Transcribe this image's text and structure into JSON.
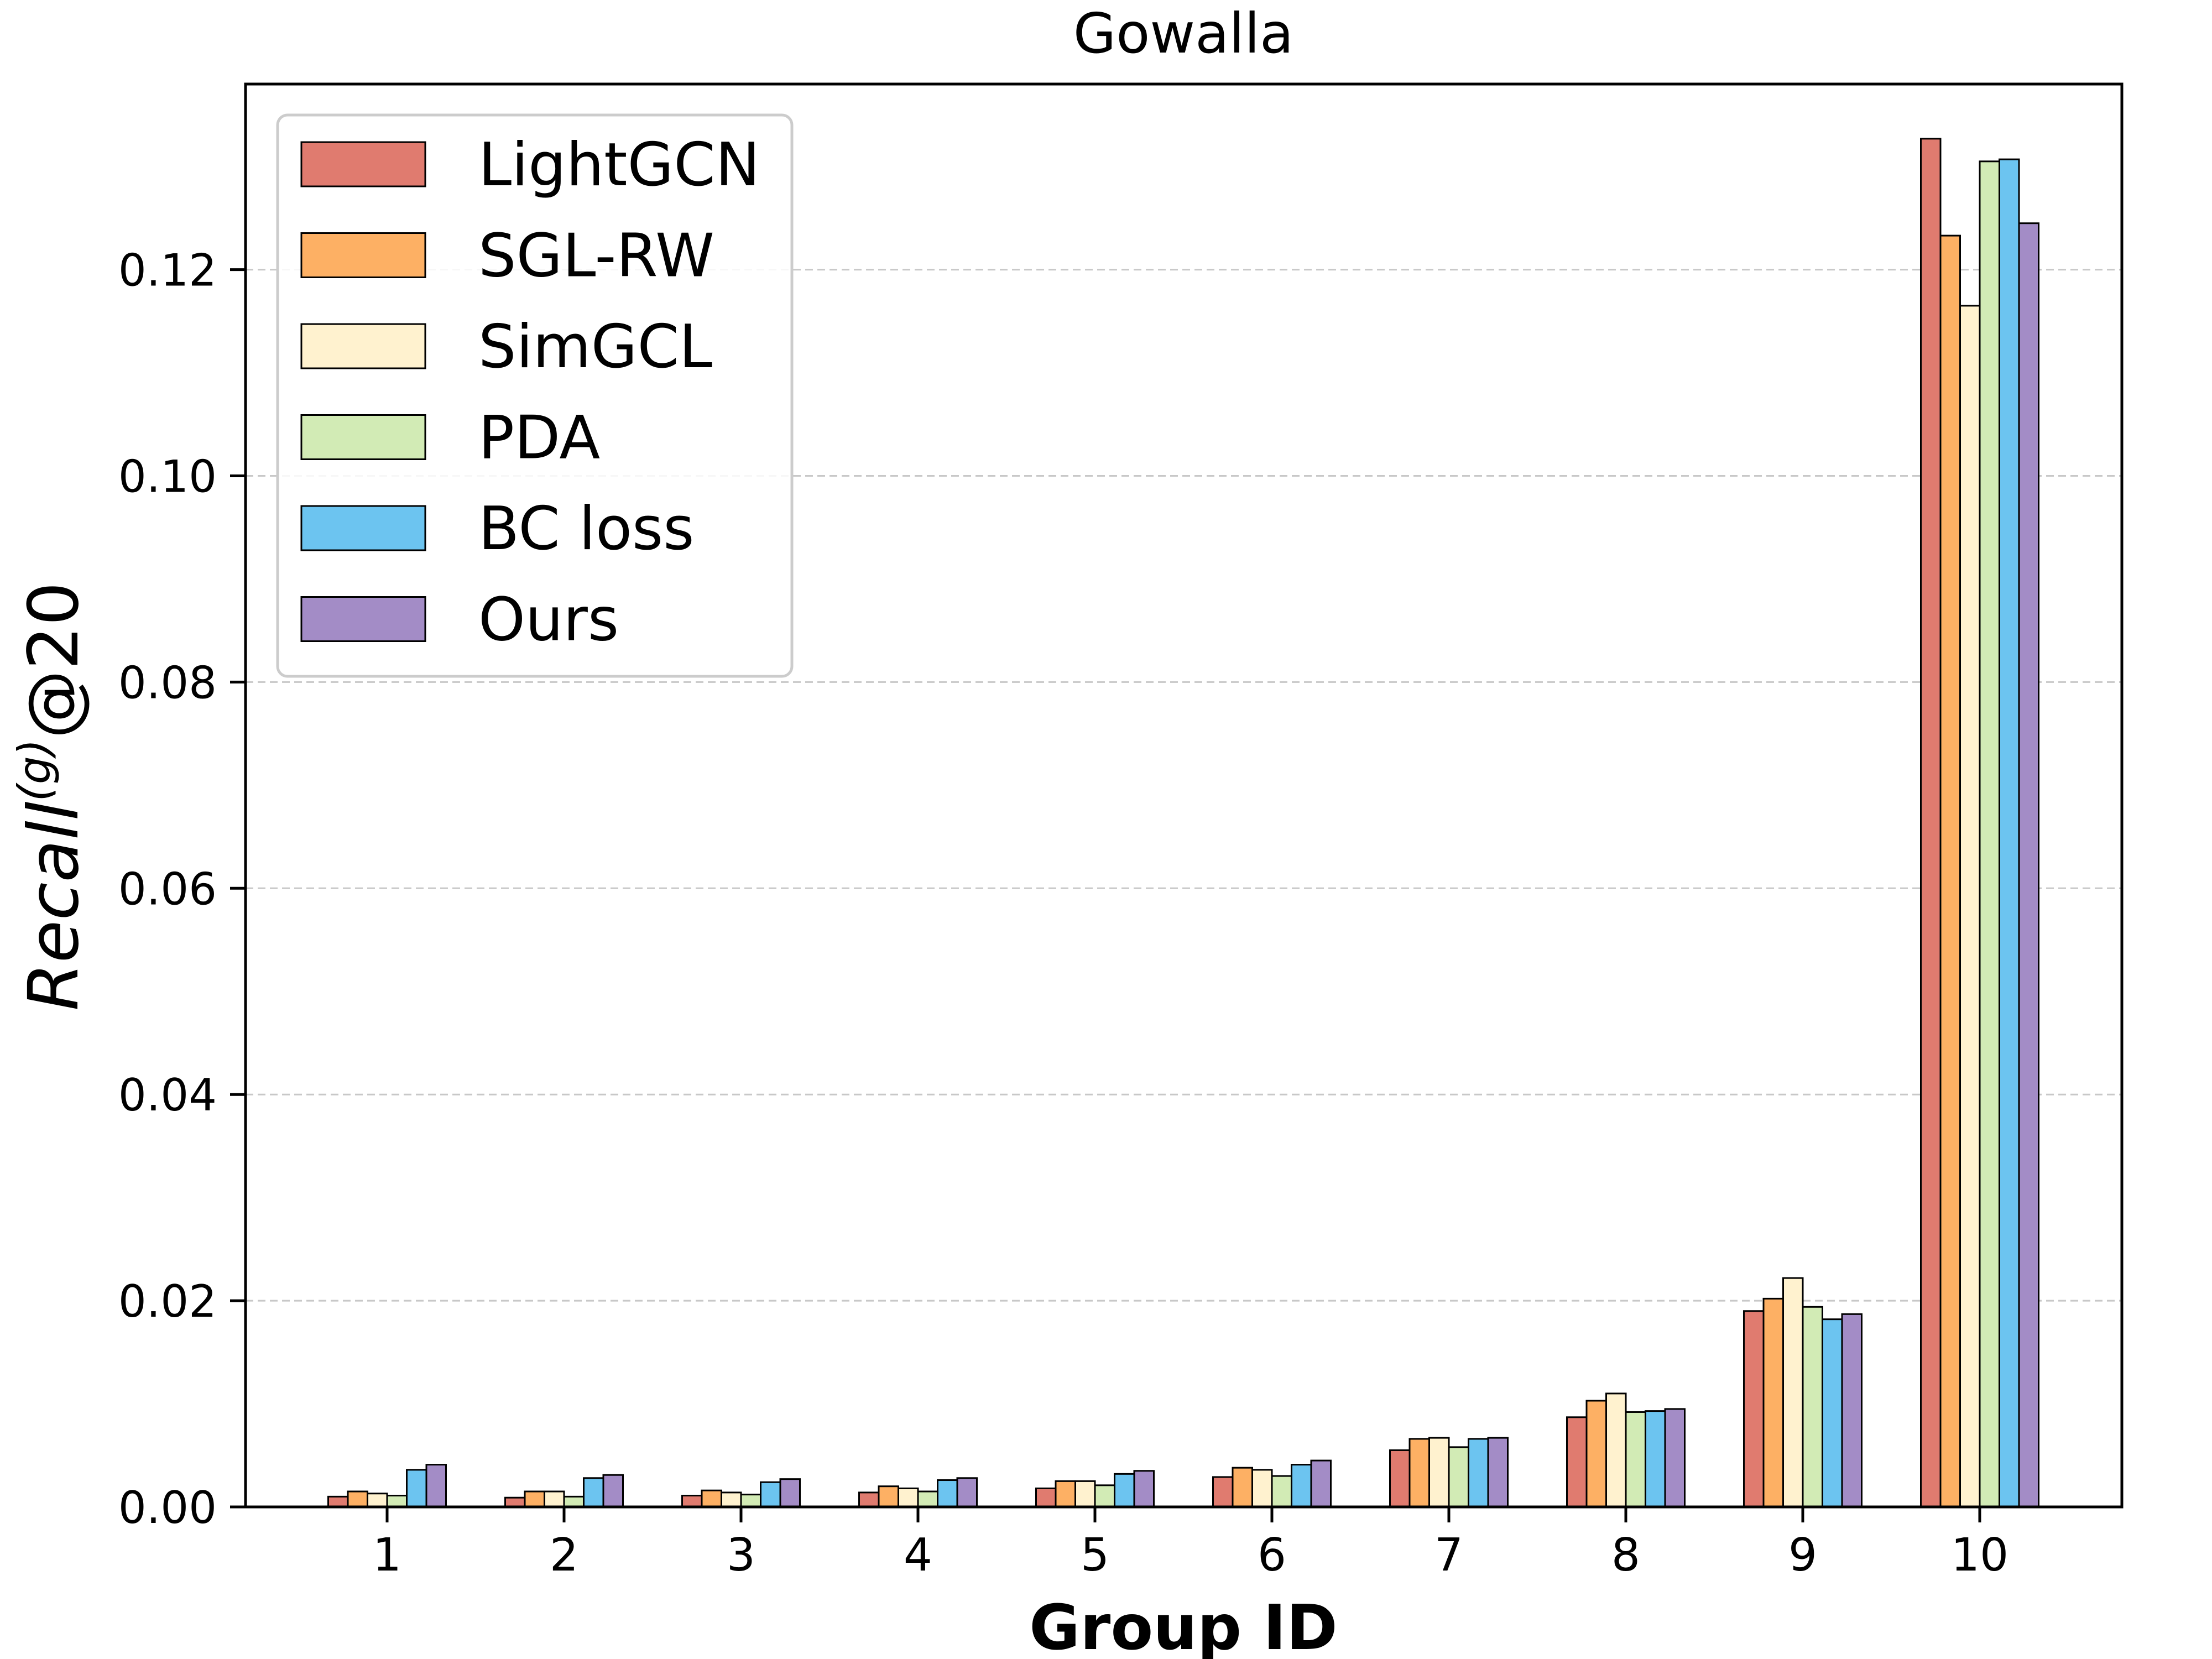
{
  "chart_data": {
    "type": "bar",
    "title": "Gowalla",
    "xlabel": "Group ID",
    "ylabel_main": "Recall",
    "ylabel_sup": "(g)",
    "ylabel_suffix": "@20",
    "categories": [
      "1",
      "2",
      "3",
      "4",
      "5",
      "6",
      "7",
      "8",
      "9",
      "10"
    ],
    "ylim": [
      0,
      0.138
    ],
    "yticks": [
      0.0,
      0.02,
      0.04,
      0.06,
      0.08,
      0.1,
      0.12
    ],
    "ytick_labels": [
      "0.00",
      "0.02",
      "0.04",
      "0.06",
      "0.08",
      "0.10",
      "0.12"
    ],
    "grid": "horizontal dashed",
    "legend_position": "top-left",
    "series": [
      {
        "name": "LightGCN",
        "color": "#E07B6F",
        "values": [
          0.001,
          0.0009,
          0.0011,
          0.0014,
          0.0018,
          0.0029,
          0.0055,
          0.0087,
          0.019,
          0.1327
        ]
      },
      {
        "name": "SGL-RW",
        "color": "#FDB064",
        "values": [
          0.0015,
          0.0015,
          0.0016,
          0.002,
          0.0025,
          0.0038,
          0.0066,
          0.0103,
          0.0202,
          0.1233
        ]
      },
      {
        "name": "SimGCL",
        "color": "#FFF2CF",
        "values": [
          0.0013,
          0.0015,
          0.0014,
          0.0018,
          0.0025,
          0.0036,
          0.0067,
          0.011,
          0.0222,
          0.1165
        ]
      },
      {
        "name": "PDA",
        "color": "#D2EBB5",
        "values": [
          0.0011,
          0.001,
          0.0012,
          0.0015,
          0.0021,
          0.003,
          0.0058,
          0.0092,
          0.0194,
          0.1305
        ]
      },
      {
        "name": "BC loss",
        "color": "#6CC4F0",
        "values": [
          0.0036,
          0.0028,
          0.0024,
          0.0026,
          0.0032,
          0.0041,
          0.0066,
          0.0093,
          0.0182,
          0.1307
        ]
      },
      {
        "name": "Ours",
        "color": "#A38CC6",
        "values": [
          0.0041,
          0.0031,
          0.0027,
          0.0028,
          0.0035,
          0.0045,
          0.0067,
          0.0095,
          0.0187,
          0.1245
        ]
      }
    ]
  }
}
